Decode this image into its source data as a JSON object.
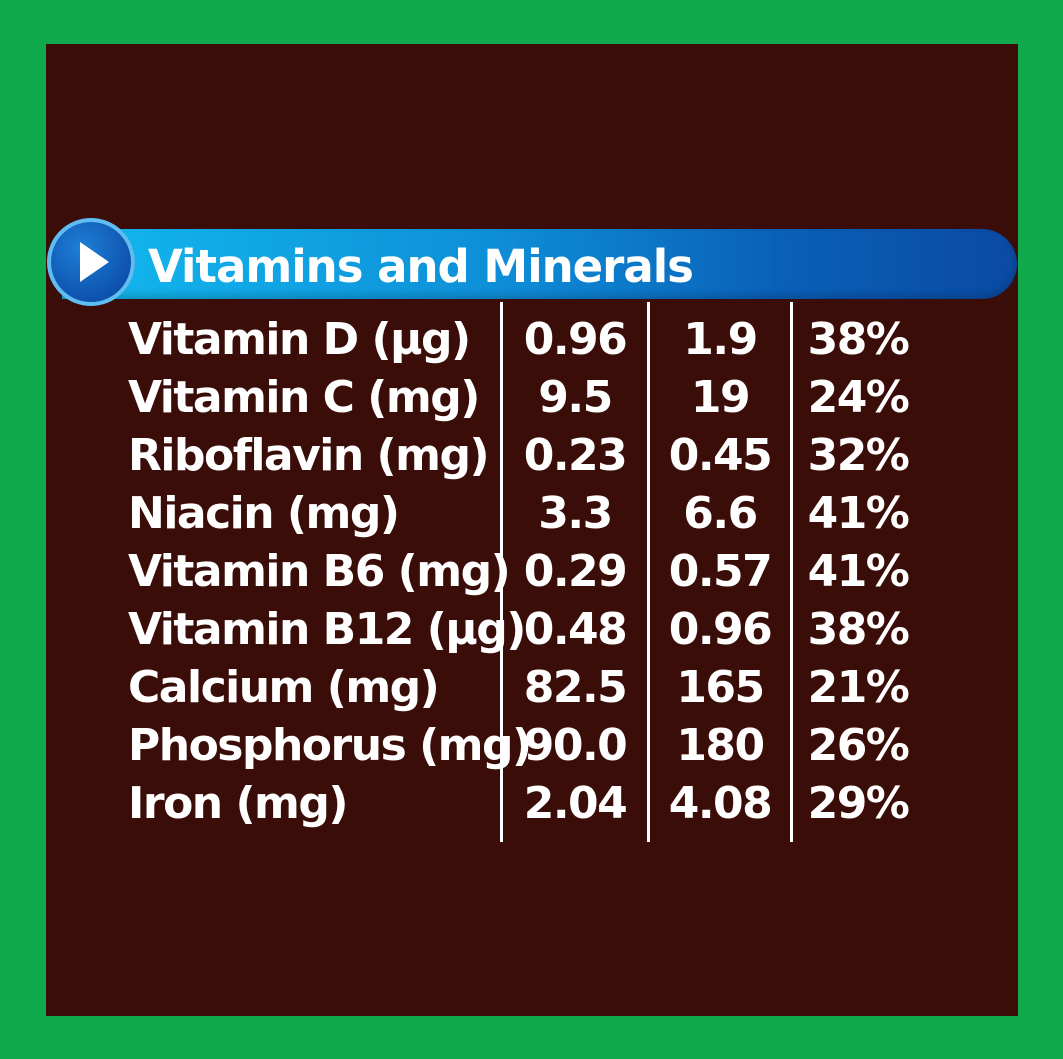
{
  "header": {
    "title": "Vitamins and Minerals"
  },
  "rows": [
    {
      "name": "Vitamin D (µg)",
      "v1": "0.96",
      "v2": "1.9",
      "v3": "38%"
    },
    {
      "name": "Vitamin C (mg)",
      "v1": "9.5",
      "v2": "19",
      "v3": "24%"
    },
    {
      "name": "Riboflavin (mg)",
      "v1": "0.23",
      "v2": "0.45",
      "v3": "32%"
    },
    {
      "name": "Niacin (mg)",
      "v1": "3.3",
      "v2": "6.6",
      "v3": "41%"
    },
    {
      "name": "Vitamin B6 (mg)",
      "v1": "0.29",
      "v2": "0.57",
      "v3": "41%"
    },
    {
      "name": "Vitamin B12 (µg)",
      "v1": "0.48",
      "v2": "0.96",
      "v3": "38%"
    },
    {
      "name": "Calcium (mg)",
      "v1": "82.5",
      "v2": "165",
      "v3": "21%"
    },
    {
      "name": "Phosphorus (mg)",
      "v1": "90.0",
      "v2": "180",
      "v3": "26%"
    },
    {
      "name": "Iron (mg)",
      "v1": "2.04",
      "v2": "4.08",
      "v3": "29%"
    }
  ],
  "colors": {
    "border": "#10a94b",
    "background": "#3a0d08",
    "banner": "#0e8fd8",
    "text": "#ffffff"
  },
  "icons": {
    "banner_arrow": "play-arrow-icon"
  }
}
